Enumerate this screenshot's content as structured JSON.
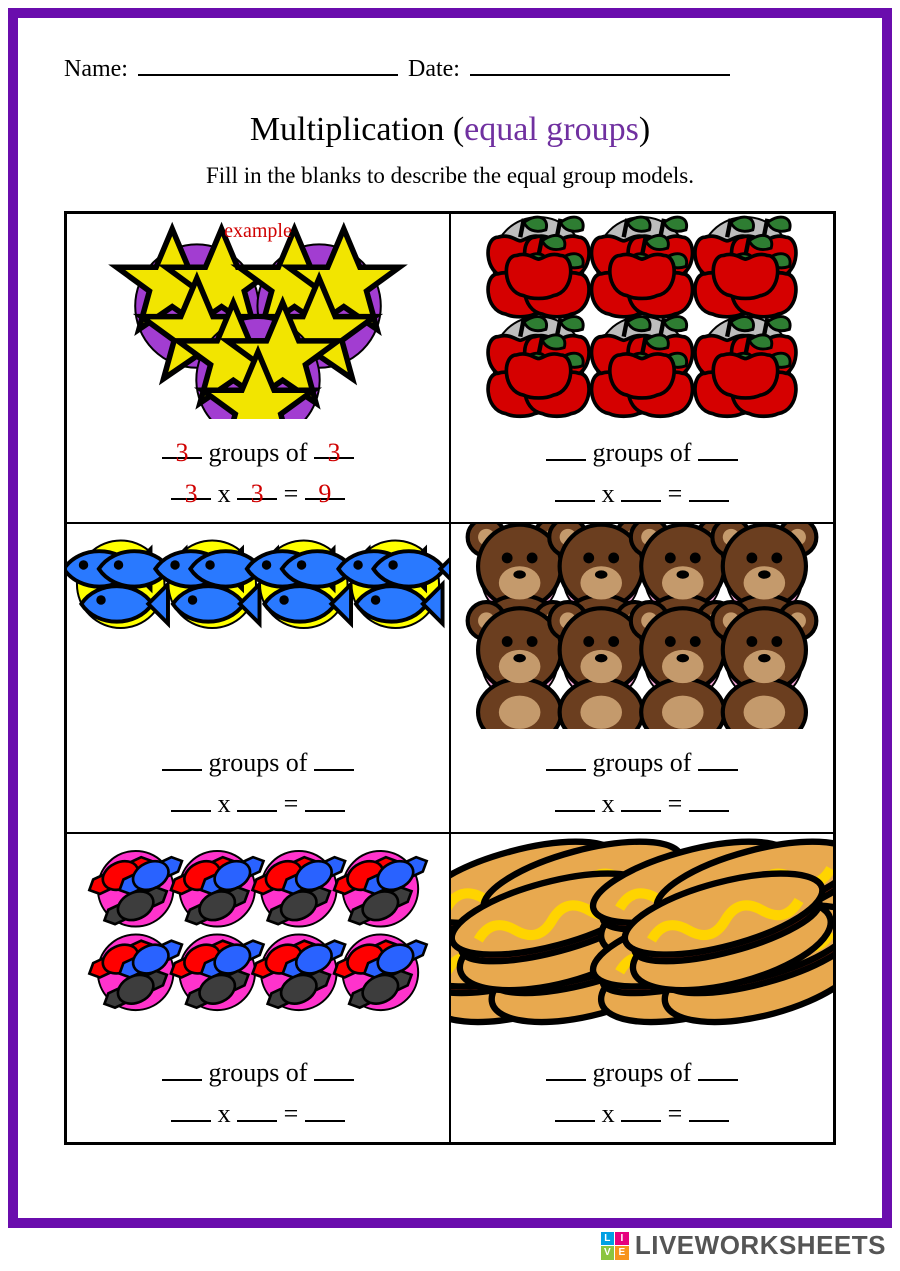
{
  "header": {
    "name_label": "Name:",
    "date_label": "Date:",
    "name_blank_width": 260,
    "date_blank_width": 260
  },
  "title_prefix": "Multiplication (",
  "title_accent": "equal groups",
  "title_suffix": ")",
  "instructions": "Fill in the blanks to describe the equal group models.",
  "colors": {
    "frame_border": "#6a0dad",
    "accent_text": "#7030a0",
    "example_red": "#d00000",
    "black": "#000000",
    "watermark_gray": "#555555"
  },
  "equation_template": {
    "line1_mid": " groups of ",
    "line2_times": " x ",
    "line2_eq": " = "
  },
  "cells": [
    {
      "id": "stars",
      "example_label": "example",
      "groups": 3,
      "per_group": 3,
      "circle_fill": "#a23dd1",
      "circle_stroke": "#000000",
      "item_type": "star",
      "item_fill": "#f2e500",
      "item_stroke": "#000000",
      "layout": "triangle",
      "circle_radius": 62,
      "filled_values": {
        "a": "3",
        "b": "3",
        "c": "3",
        "d": "3",
        "e": "9"
      }
    },
    {
      "id": "apples",
      "groups": 6,
      "per_group": 5,
      "circle_fill": "#bdbdbd",
      "circle_stroke": "#000000",
      "item_type": "apple",
      "item_fill": "#d50000",
      "item_stroke": "#000000",
      "leaf_fill": "#2e7d32",
      "layout": "grid2x3",
      "circle_radius": 46,
      "filled_values": null
    },
    {
      "id": "fish",
      "groups": 4,
      "per_group": 3,
      "circle_fill": "#ffff00",
      "circle_stroke": "#000000",
      "item_type": "fish",
      "item_fill": "#2979ff",
      "item_stroke": "#000000",
      "layout": "row4",
      "circle_radius": 44,
      "filled_values": null
    },
    {
      "id": "bears",
      "groups": 8,
      "per_group": 1,
      "circle_fill": "#f4a6d7",
      "circle_stroke": "#000000",
      "item_type": "bear",
      "item_fill": "#6b3e1f",
      "item_fill2": "#c49a6c",
      "item_stroke": "#000000",
      "layout": "grid2x4",
      "circle_radius": 38,
      "filled_values": null
    },
    {
      "id": "candy",
      "groups": 8,
      "per_group": 3,
      "circle_fill": "#ff33cc",
      "circle_stroke": "#000000",
      "item_type": "candy",
      "item_colors": [
        "#ff0000",
        "#2962ff",
        "#3d3d3d"
      ],
      "item_stroke": "#000000",
      "layout": "grid2x4",
      "circle_radius": 38,
      "filled_values": null
    },
    {
      "id": "hotdogs",
      "groups": 2,
      "per_group": 5,
      "circle_fill": "#0099e6",
      "circle_stroke": "#000000",
      "item_type": "hotdog",
      "bun_fill": "#e8a94f",
      "sausage_fill": "#9c2b0e",
      "mustard_fill": "#ffd400",
      "item_stroke": "#000000",
      "layout": "row2",
      "circle_radius": 80,
      "filled_values": null
    }
  ],
  "watermark": {
    "text": "LIVEWORKSHEETS",
    "box_colors": [
      "#00a0e3",
      "#e6007e",
      "#8bc53f",
      "#f7941d"
    ],
    "box_letters": [
      "L",
      "I",
      "V",
      "E"
    ]
  }
}
